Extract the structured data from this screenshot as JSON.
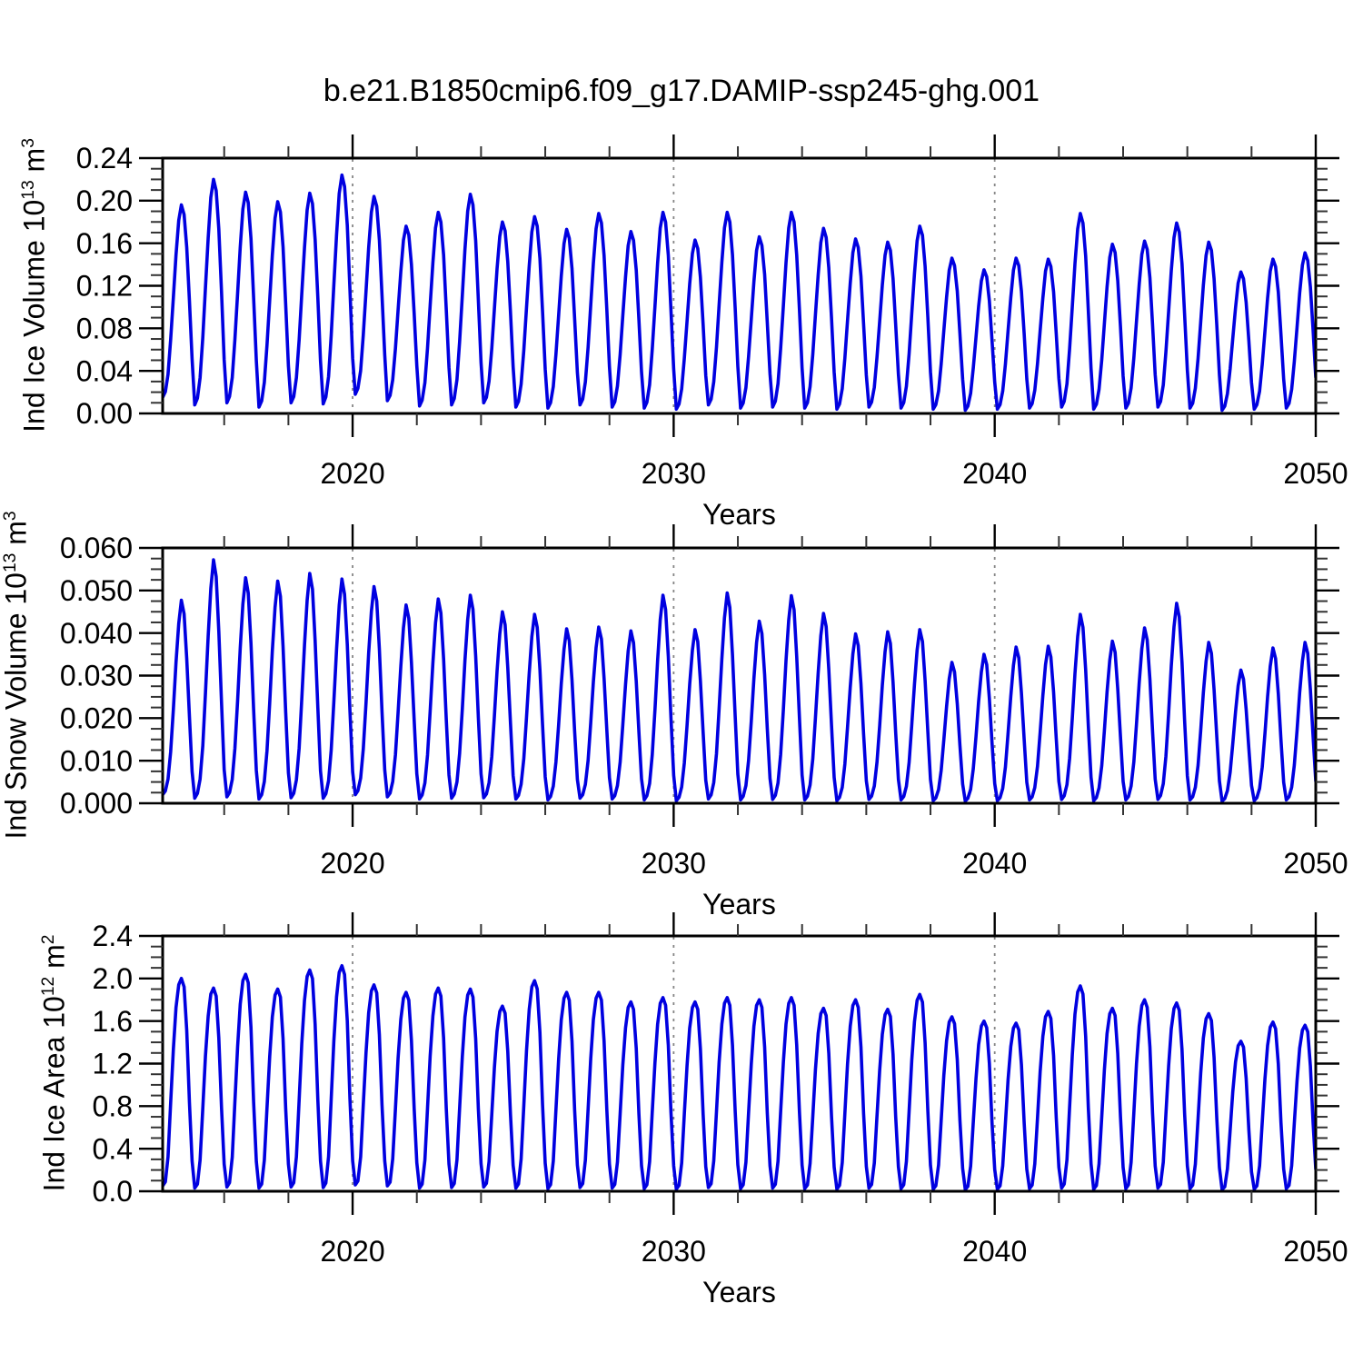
{
  "title": "b.e21.B1850cmip6.f09_g17.DAMIP-ssp245-ghg.001",
  "colors": {
    "line_blue": "#0000E0",
    "grid_dash_gray": "#858585",
    "axis_black": "#000000",
    "minor_tick_gray": "#333333"
  },
  "years": [
    2014,
    2015,
    2016,
    2017,
    2018,
    2019,
    2020,
    2021,
    2022,
    2023,
    2024,
    2025,
    2026,
    2027,
    2028,
    2029,
    2030,
    2031,
    2032,
    2033,
    2034,
    2035,
    2036,
    2037,
    2038,
    2039,
    2040,
    2041,
    2042,
    2043,
    2044,
    2045,
    2046,
    2047,
    2048,
    2049
  ],
  "chart_data": [
    {
      "type": "line",
      "title": "",
      "ylabel": "Ind Ice Volume 10^13 m^3",
      "ylabel_parts": [
        "Ind Ice Volume 10",
        "13",
        " m",
        "3"
      ],
      "xlabel": "Years",
      "xlim": [
        2014.083,
        2050.0
      ],
      "ylim": [
        0,
        0.24
      ],
      "xticks": [
        2020,
        2030,
        2040,
        2050
      ],
      "xtick_labels": [
        "2020",
        "2030",
        "2040",
        "2050"
      ],
      "x_minor_step_years": 2,
      "gridlines_x": [
        2020,
        2030,
        2040
      ],
      "yticks": [
        0,
        0.04,
        0.08,
        0.12,
        0.16,
        0.2,
        0.24
      ],
      "ytick_labels": [
        "0.00",
        "0.04",
        "0.08",
        "0.12",
        "0.16",
        "0.20",
        "0.24"
      ],
      "y_minor_step": 0.01,
      "grid": "dashed-vertical-only",
      "legend": "none",
      "line_color": "#0000E0",
      "start_year": 2014,
      "annual_peaks": [
        0.196,
        0.22,
        0.208,
        0.199,
        0.207,
        0.224,
        0.204,
        0.176,
        0.189,
        0.206,
        0.18,
        0.185,
        0.173,
        0.188,
        0.171,
        0.189,
        0.163,
        0.189,
        0.166,
        0.189,
        0.174,
        0.164,
        0.161,
        0.176,
        0.146,
        0.135,
        0.146,
        0.145,
        0.188,
        0.159,
        0.162,
        0.179,
        0.161,
        0.133,
        0.145,
        0.151
      ],
      "annual_troughs": [
        0.015,
        0.008,
        0.01,
        0.006,
        0.01,
        0.009,
        0.018,
        0.012,
        0.007,
        0.008,
        0.01,
        0.006,
        0.005,
        0.008,
        0.006,
        0.005,
        0.004,
        0.008,
        0.005,
        0.006,
        0.005,
        0.004,
        0.006,
        0.005,
        0.004,
        0.003,
        0.004,
        0.005,
        0.006,
        0.004,
        0.005,
        0.006,
        0.005,
        0.003,
        0.004,
        0.005
      ],
      "seasonal_shape_from_feb": [
        0.0,
        0.03,
        0.12,
        0.3,
        0.52,
        0.74,
        0.92,
        1.0,
        0.95,
        0.78,
        0.5,
        0.2
      ]
    },
    {
      "type": "line",
      "title": "",
      "ylabel": "Ind Snow Volume 10^13 m^3",
      "ylabel_parts": [
        "Ind Snow Volume 10",
        "13",
        " m",
        "3"
      ],
      "xlabel": "Years",
      "xlim": [
        2014.083,
        2050.0
      ],
      "ylim": [
        0,
        0.06
      ],
      "xticks": [
        2020,
        2030,
        2040,
        2050
      ],
      "xtick_labels": [
        "2020",
        "2030",
        "2040",
        "2050"
      ],
      "x_minor_step_years": 2,
      "gridlines_x": [
        2020,
        2030,
        2040
      ],
      "yticks": [
        0,
        0.01,
        0.02,
        0.03,
        0.04,
        0.05,
        0.06
      ],
      "ytick_labels": [
        "0.000",
        "0.010",
        "0.020",
        "0.030",
        "0.040",
        "0.050",
        "0.060"
      ],
      "y_minor_step": 0.0025,
      "grid": "dashed-vertical-only",
      "legend": "none",
      "line_color": "#0000E0",
      "start_year": 2014,
      "annual_peaks": [
        0.0477,
        0.0572,
        0.053,
        0.0522,
        0.054,
        0.0527,
        0.0509,
        0.0466,
        0.048,
        0.0489,
        0.045,
        0.0444,
        0.041,
        0.0414,
        0.0405,
        0.0489,
        0.0408,
        0.0494,
        0.0428,
        0.0488,
        0.0446,
        0.0398,
        0.0403,
        0.0408,
        0.0331,
        0.035,
        0.0367,
        0.0369,
        0.0444,
        0.0381,
        0.0412,
        0.047,
        0.0378,
        0.0313,
        0.0365,
        0.0378
      ],
      "annual_troughs": [
        0.002,
        0.0012,
        0.0015,
        0.001,
        0.0013,
        0.0012,
        0.002,
        0.0015,
        0.001,
        0.0012,
        0.0013,
        0.001,
        0.0008,
        0.0012,
        0.001,
        0.0008,
        0.0006,
        0.001,
        0.0008,
        0.0009,
        0.0008,
        0.0006,
        0.0009,
        0.0008,
        0.0006,
        0.0005,
        0.0006,
        0.0008,
        0.0009,
        0.0006,
        0.0008,
        0.0009,
        0.0008,
        0.0005,
        0.0006,
        0.0008
      ],
      "seasonal_shape_from_feb": [
        0.0,
        0.02,
        0.08,
        0.22,
        0.44,
        0.68,
        0.88,
        1.0,
        0.93,
        0.7,
        0.4,
        0.12
      ]
    },
    {
      "type": "line",
      "title": "",
      "ylabel": "Ind Ice Area 10^12 m^2",
      "ylabel_parts": [
        "Ind Ice Area 10",
        "12",
        " m",
        "2"
      ],
      "xlabel": "Years",
      "xlim": [
        2014.083,
        2050.0
      ],
      "ylim": [
        0,
        2.4
      ],
      "xticks": [
        2020,
        2030,
        2040,
        2050
      ],
      "xtick_labels": [
        "2020",
        "2030",
        "2040",
        "2050"
      ],
      "x_minor_step_years": 2,
      "gridlines_x": [
        2020,
        2030,
        2040
      ],
      "yticks": [
        0,
        0.4,
        0.8,
        1.2,
        1.6,
        2.0,
        2.4
      ],
      "ytick_labels": [
        "0.0",
        "0.4",
        "0.8",
        "1.2",
        "1.6",
        "2.0",
        "2.4"
      ],
      "y_minor_step": 0.1,
      "grid": "dashed-vertical-only",
      "legend": "none",
      "line_color": "#0000E0",
      "start_year": 2014,
      "annual_peaks": [
        2.0,
        1.91,
        2.04,
        1.9,
        2.08,
        2.12,
        1.94,
        1.87,
        1.91,
        1.9,
        1.74,
        1.98,
        1.87,
        1.87,
        1.78,
        1.82,
        1.78,
        1.82,
        1.8,
        1.82,
        1.72,
        1.8,
        1.71,
        1.85,
        1.64,
        1.6,
        1.58,
        1.69,
        1.93,
        1.72,
        1.8,
        1.77,
        1.67,
        1.41,
        1.59,
        1.56
      ],
      "annual_troughs": [
        0.05,
        0.03,
        0.04,
        0.03,
        0.04,
        0.035,
        0.06,
        0.05,
        0.03,
        0.035,
        0.04,
        0.03,
        0.025,
        0.035,
        0.03,
        0.025,
        0.02,
        0.035,
        0.025,
        0.03,
        0.025,
        0.02,
        0.03,
        0.025,
        0.02,
        0.015,
        0.02,
        0.025,
        0.03,
        0.02,
        0.025,
        0.03,
        0.025,
        0.015,
        0.02,
        0.025
      ],
      "seasonal_shape_from_feb": [
        0.0,
        0.02,
        0.14,
        0.4,
        0.66,
        0.86,
        0.97,
        1.0,
        0.96,
        0.75,
        0.4,
        0.12
      ]
    }
  ]
}
